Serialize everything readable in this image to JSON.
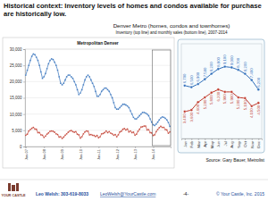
{
  "heading": "Historical context: Inventory levels of homes and condos available for purchase are historically low.",
  "chart_title": "Denver Metro (homes, condos and townhomes)",
  "chart_subtitle": "Inventory (top line) and monthly sales (bottom line), 2007-2014",
  "source": "Source:  Gary Bauer, Metrolist",
  "footer": {
    "logo": "YOUR CASTLE",
    "contact": "Leo Welsh:  303-619-8033",
    "email": "LeoWelsh@YourCastle.com",
    "page": "-4-",
    "copyright": "© Your Castle, Inc. 2015"
  },
  "chart_data": [
    {
      "type": "line",
      "title": "Metropolitan Denver",
      "categories": [
        "Jan-07",
        null,
        null,
        null,
        null,
        null,
        null,
        null,
        null,
        null,
        null,
        null,
        "Jan-08",
        null,
        null,
        null,
        null,
        null,
        null,
        null,
        null,
        null,
        null,
        null,
        "Jan-09",
        null,
        null,
        null,
        null,
        null,
        null,
        null,
        null,
        null,
        null,
        null,
        "Jan-10",
        null,
        null,
        null,
        null,
        null,
        null,
        null,
        null,
        null,
        null,
        null,
        "Jan-11",
        null,
        null,
        null,
        null,
        null,
        null,
        null,
        null,
        null,
        null,
        null,
        "Jan-12",
        null,
        null,
        null,
        null,
        null,
        null,
        null,
        null,
        null,
        null,
        null,
        "Jan-13",
        null,
        null,
        null,
        null,
        null,
        null,
        null,
        null,
        null,
        null,
        null,
        "Jan-14",
        null,
        null,
        null,
        null,
        null,
        null,
        null,
        null,
        null,
        null,
        null
      ],
      "series": [
        {
          "color": "#2f6eba",
          "marker": "circle",
          "values": [
            22000,
            23500,
            25000,
            26500,
            27800,
            28500,
            28300,
            27500,
            26500,
            25000,
            23000,
            21000,
            21500,
            22500,
            24000,
            25500,
            26500,
            27000,
            26800,
            26000,
            25000,
            23500,
            21500,
            19500,
            19000,
            19500,
            20500,
            21500,
            22000,
            22000,
            21500,
            21000,
            20000,
            19000,
            17500,
            16000,
            16500,
            17500,
            19000,
            20500,
            21500,
            22000,
            21500,
            20500,
            19500,
            18500,
            17000,
            15500,
            15500,
            16000,
            17000,
            17500,
            18000,
            18000,
            17500,
            17000,
            16000,
            15000,
            13500,
            12000,
            11500,
            11500,
            12000,
            12500,
            13000,
            13000,
            12800,
            12500,
            12000,
            11000,
            10000,
            9000,
            8500,
            8500,
            9000,
            9500,
            10000,
            10500,
            10500,
            10300,
            10000,
            9500,
            8500,
            7500,
            6700,
            6500,
            6900,
            7500,
            8200,
            8800,
            9100,
            9000,
            8700,
            8200,
            7400,
            6200
          ]
        },
        {
          "color": "#c0392b",
          "marker": "circle",
          "values": [
            3500,
            3800,
            4800,
            5200,
            5600,
            5900,
            5400,
            5300,
            4300,
            4300,
            3600,
            3500,
            2800,
            3200,
            3800,
            4200,
            4700,
            4800,
            4700,
            4400,
            3900,
            3700,
            2900,
            3000,
            2500,
            2900,
            3500,
            3900,
            4400,
            4800,
            4900,
            4600,
            4400,
            4600,
            3800,
            3600,
            2600,
            3000,
            3900,
            4500,
            4800,
            4700,
            3600,
            3700,
            3500,
            3400,
            3100,
            3400,
            2700,
            3000,
            3900,
            4000,
            4300,
            4800,
            4300,
            4600,
            4100,
            3900,
            3500,
            3700,
            3000,
            3600,
            4500,
            4700,
            5300,
            5500,
            5100,
            5400,
            4500,
            4800,
            4300,
            4400,
            3500,
            3800,
            4700,
            5300,
            6000,
            6100,
            6300,
            6300,
            5100,
            5200,
            4300,
            4200,
            3400,
            3600,
            4600,
            5200,
            5800,
            6200,
            5900,
            5900,
            5200,
            5100,
            4100,
            4500
          ]
        }
      ],
      "ylim": [
        0,
        30000
      ],
      "yticks": [
        0,
        {
          "value": 5000,
          "label": "5,000"
        },
        {
          "value": 10000,
          "label": "10,000"
        },
        {
          "value": 15000,
          "label": "15,000"
        },
        {
          "value": 20000,
          "label": "20,000"
        },
        {
          "value": 25000,
          "label": "25,000"
        },
        {
          "value": 30000,
          "label": "30,000"
        }
      ],
      "grid": true
    },
    {
      "type": "line",
      "categories": [
        "Jan",
        "Feb",
        "Mar",
        "Apr",
        "May",
        "Jun",
        "Jul",
        "Aug",
        "Sep",
        "Oct",
        "Nov",
        "Dec"
      ],
      "series": [
        {
          "color": "#2f6eba",
          "marker": "circle",
          "values": [
            6700,
            6500,
            6900,
            7500,
            8200,
            8800,
            9100,
            9000,
            8700,
            8200,
            7400,
            6200
          ],
          "value_labels": [
            "6,700",
            "6,500",
            "6,900",
            "7,500",
            "8,200",
            "8,800",
            "9,100",
            "9,000",
            "8,700",
            "8,200",
            "7,400",
            "6,200"
          ]
        },
        {
          "color": "#c0392b",
          "marker": "circle",
          "values": [
            3400,
            3600,
            4600,
            5200,
            5800,
            6200,
            5900,
            5900,
            5200,
            5100,
            4100,
            4500
          ],
          "value_labels": [
            "3,400",
            "3,600",
            "4,600",
            "5,200",
            "5,800",
            "6,200",
            "5,900",
            "5,900",
            "5,200",
            "5,100",
            "4,100",
            "4,500"
          ]
        }
      ],
      "ylim": [
        0,
        12000
      ],
      "tick_labels": "x",
      "data_labels": true
    }
  ]
}
